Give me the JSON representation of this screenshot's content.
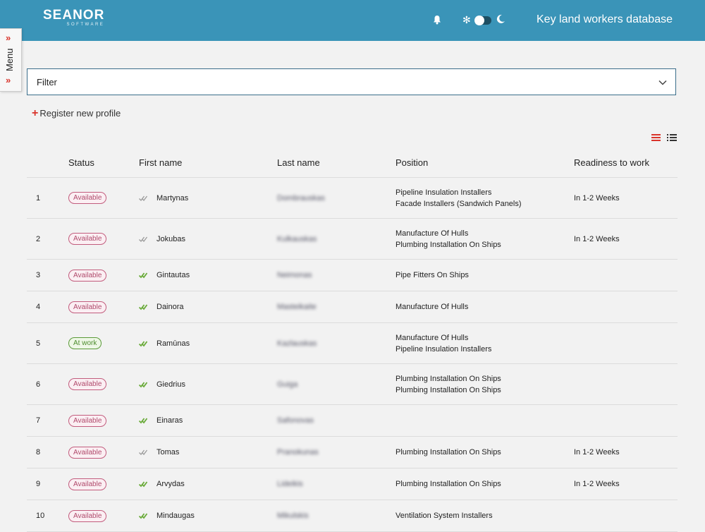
{
  "header": {
    "logo_main": "SEANOR",
    "logo_sub": "SOFTWARE",
    "title": "Key land workers database"
  },
  "menu": {
    "label": "Menu"
  },
  "filter": {
    "label": "Filter"
  },
  "register": {
    "label": "Register new profile"
  },
  "table": {
    "columns": [
      "",
      "Status",
      "First name",
      "Last name",
      "Position",
      "Readiness to work"
    ],
    "rows": [
      {
        "n": "1",
        "status": "Available",
        "first": "Martynas",
        "last": "Dombrauskas",
        "pos": [
          "Pipeline Insulation Installers",
          "Facade Installers (Sandwich Panels)"
        ],
        "ready": "In 1-2 Weeks"
      },
      {
        "n": "2",
        "status": "Available",
        "first": "Jokubas",
        "last": "Kulkauskas",
        "pos": [
          "Manufacture Of Hulls",
          "Plumbing Installation On Ships"
        ],
        "ready": "In 1-2 Weeks"
      },
      {
        "n": "3",
        "status": "Available",
        "first": "Gintautas",
        "last": "Neimonas",
        "pos": [
          "Pipe Fitters On Ships"
        ],
        "ready": ""
      },
      {
        "n": "4",
        "status": "Available",
        "first": "Dainora",
        "last": "Masteikaite",
        "pos": [
          "Manufacture Of Hulls"
        ],
        "ready": ""
      },
      {
        "n": "5",
        "status": "At work",
        "first": "Ramūnas",
        "last": "Kazlauskas",
        "pos": [
          "Manufacture Of Hulls",
          "Pipeline Insulation Installers"
        ],
        "ready": ""
      },
      {
        "n": "6",
        "status": "Available",
        "first": "Giedrius",
        "last": "Guiga",
        "pos": [
          "Plumbing Installation On Ships",
          "Plumbing Installation On Ships"
        ],
        "ready": ""
      },
      {
        "n": "7",
        "status": "Available",
        "first": "Einaras",
        "last": "Safonovas",
        "pos": [],
        "ready": ""
      },
      {
        "n": "8",
        "status": "Available",
        "first": "Tomas",
        "last": "Pranokunas",
        "pos": [
          "Plumbing Installation On Ships"
        ],
        "ready": "In 1-2 Weeks"
      },
      {
        "n": "9",
        "status": "Available",
        "first": "Arvydas",
        "last": "Lideikis",
        "pos": [
          "Plumbing Installation On Ships"
        ],
        "ready": "In 1-2 Weeks"
      },
      {
        "n": "10",
        "status": "Available",
        "first": "Mindaugas",
        "last": "Mikulskis",
        "pos": [
          "Ventilation System Installers"
        ],
        "ready": ""
      }
    ]
  },
  "colors": {
    "header_bg": "#3a94b8",
    "accent_red": "#d9342b",
    "available": "#b04a6c",
    "at_work": "#4d8c2e",
    "check_verified": "#6aab3a",
    "check_unverified": "#9a9a9a"
  },
  "icons": {
    "bell": "bell-icon",
    "sun": "sun-icon",
    "moon": "moon-icon",
    "filter_chevron": "chevron-down-icon",
    "plus": "plus-icon",
    "list_view": "list-view-icon",
    "detail_view": "detail-list-icon",
    "row_check": "double-check-icon"
  }
}
